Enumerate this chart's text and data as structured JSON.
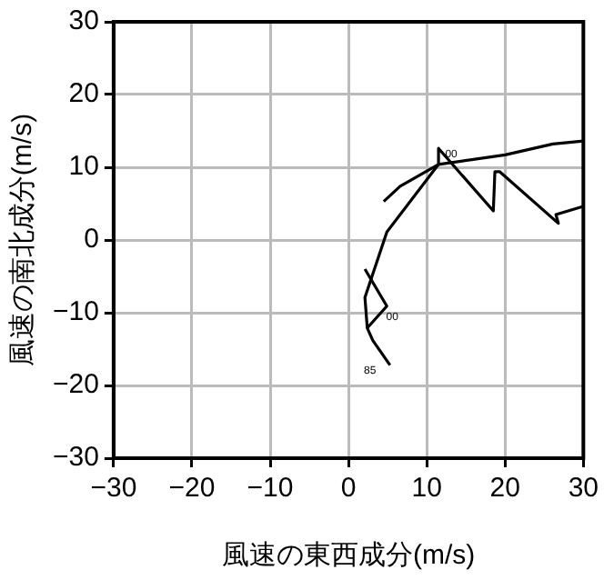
{
  "chart_data": {
    "type": "line",
    "xlabel": "風速の東西成分(m/s)",
    "ylabel": "風速の南北成分(m/s)",
    "xlim": [
      -30,
      30
    ],
    "ylim": [
      -30,
      30
    ],
    "xticks": [
      -30,
      -20,
      -10,
      0,
      10,
      20,
      30
    ],
    "yticks": [
      -30,
      -20,
      -10,
      0,
      10,
      20,
      30
    ],
    "grid": true,
    "legend": false,
    "marker": "none",
    "line_style": "solid",
    "series": [
      {
        "color": "#000000",
        "x": [
          2.1,
          4.9,
          2.4,
          3.1,
          5.3
        ],
        "values": [
          -4.0,
          -9.1,
          -12.1,
          -13.8,
          -17.2
        ]
      },
      {
        "color": "#000000",
        "x": [
          2.4,
          2.1,
          4.9,
          11.5,
          11.5,
          18.5,
          18.7,
          19.3,
          26.8,
          26.5,
          29.9
        ],
        "values": [
          -12.1,
          -7.9,
          1.1,
          10.4,
          12.6,
          4.0,
          9.4,
          9.4,
          2.3,
          3.5,
          4.6
        ]
      },
      {
        "color": "#000000",
        "x": [
          4.5,
          6.6,
          11.5,
          20,
          26.1,
          30
        ],
        "values": [
          5.3,
          7.4,
          10.4,
          11.7,
          13.2,
          13.6
        ]
      }
    ],
    "annotations": [
      {
        "text": "85",
        "x": 5.3,
        "y": -17.2
      },
      {
        "text": "00",
        "x": 4.9,
        "y": -9.1
      },
      {
        "text": "00",
        "x": 11.5,
        "y": 12.6
      }
    ]
  }
}
